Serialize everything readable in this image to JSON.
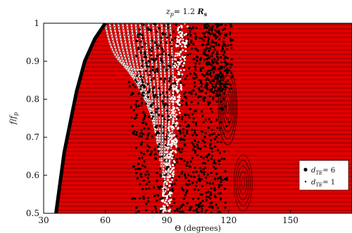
{
  "chart_data": {
    "type": "scatter",
    "title": "z_p= 1.2 R_s",
    "title_parts": {
      "main": "z",
      "sub": "p",
      "rest": "= 1.2 ",
      "r": "R",
      "rsub": "s"
    },
    "xlabel": "Θ (degrees)",
    "ylabel_parts": {
      "f": "f",
      "slash": "/",
      "fsub": "f",
      "sub": "p"
    },
    "xlim": [
      30,
      180
    ],
    "ylim": [
      0.5,
      1.0
    ],
    "xticks": [
      30,
      60,
      90,
      120,
      150
    ],
    "yticks": [
      0.5,
      0.6,
      0.7,
      0.8,
      0.9,
      1.0
    ],
    "xtick_labels": [
      "30",
      "60",
      "90",
      "120",
      "150"
    ],
    "ytick_labels": [
      "0.5",
      "0.6",
      "0.7",
      "0.8",
      "0.9",
      "1"
    ],
    "grid": false,
    "legend_position": "lower-right",
    "series": [
      {
        "name": "d_TE= 6",
        "label_parts": {
          "d": "d",
          "sub": "TE",
          "rest": "= 6"
        },
        "color": "#000000",
        "marker": "filled-circle"
      },
      {
        "name": "d_TE= 1",
        "label_parts": {
          "d": "d",
          "sub": "TE",
          "rest": "= 1"
        },
        "color": "#e00000",
        "marker": "small-dot"
      }
    ],
    "regions": {
      "fill_color": "#e00000",
      "boundary_curve": [
        [
          36,
          0.5
        ],
        [
          38,
          0.58
        ],
        [
          40,
          0.66
        ],
        [
          43,
          0.74
        ],
        [
          46,
          0.82
        ],
        [
          50,
          0.9
        ],
        [
          55,
          0.96
        ],
        [
          60,
          1.0
        ]
      ]
    }
  }
}
